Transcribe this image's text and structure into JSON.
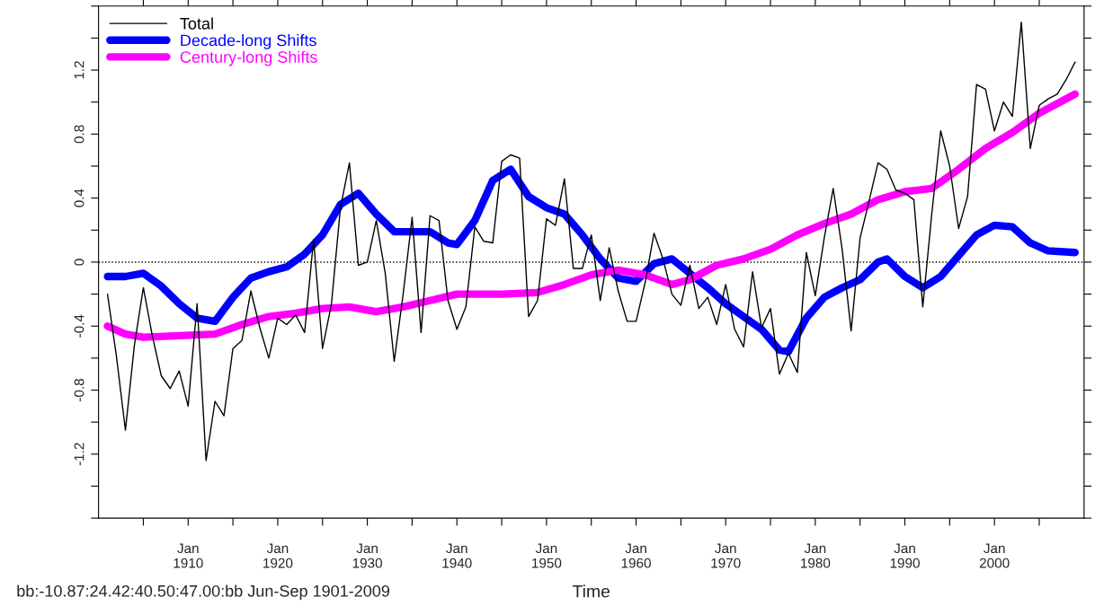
{
  "chart_data": {
    "type": "line",
    "xlabel": "Time",
    "annotations": [
      "bb:-10.87:24.42:40.50:47.00:bb Jun-Sep 1901-2009"
    ],
    "xlim": [
      "1900-01",
      "2010-01"
    ],
    "xticks": [
      {
        "value": "1905-01",
        "label": null
      },
      {
        "value": "1910-01",
        "label": "Jan\n1910"
      },
      {
        "value": "1915-01",
        "label": null
      },
      {
        "value": "1920-01",
        "label": "Jan\n1920"
      },
      {
        "value": "1925-01",
        "label": null
      },
      {
        "value": "1930-01",
        "label": "Jan\n1930"
      },
      {
        "value": "1935-01",
        "label": null
      },
      {
        "value": "1940-01",
        "label": "Jan\n1940"
      },
      {
        "value": "1945-01",
        "label": null
      },
      {
        "value": "1950-01",
        "label": "Jan\n1950"
      },
      {
        "value": "1955-01",
        "label": null
      },
      {
        "value": "1960-01",
        "label": "Jan\n1960"
      },
      {
        "value": "1965-01",
        "label": null
      },
      {
        "value": "1970-01",
        "label": "Jan\n1970"
      },
      {
        "value": "1975-01",
        "label": null
      },
      {
        "value": "1980-01",
        "label": "Jan\n1980"
      },
      {
        "value": "1985-01",
        "label": null
      },
      {
        "value": "1990-01",
        "label": "Jan\n1990"
      },
      {
        "value": "1995-01",
        "label": null
      },
      {
        "value": "2000-01",
        "label": "Jan\n2000"
      },
      {
        "value": "2005-01",
        "label": null
      }
    ],
    "ylim": [
      -1.6,
      1.6
    ],
    "yticks": [
      {
        "value": -1.6,
        "label": null
      },
      {
        "value": -1.4,
        "label": null
      },
      {
        "value": -1.2,
        "label": "-1.2"
      },
      {
        "value": -1.0,
        "label": null
      },
      {
        "value": -0.8,
        "label": "-0.8"
      },
      {
        "value": -0.6,
        "label": null
      },
      {
        "value": -0.4,
        "label": "-0.4"
      },
      {
        "value": -0.2,
        "label": null
      },
      0,
      {
        "value": 0.2,
        "label": null
      },
      0.4,
      {
        "value": 0.6,
        "label": null
      },
      0.8,
      {
        "value": 1.0,
        "label": null
      },
      1.2,
      {
        "value": 1.4,
        "label": null
      },
      {
        "value": 1.6,
        "label": null
      }
    ],
    "grid": false,
    "legend": "top left",
    "line_style": "solid",
    "marker": "none",
    "ref_lines": [
      {
        "axis": "y",
        "value": 0,
        "color": "#000000",
        "line_style": "dotted"
      }
    ],
    "series": [
      {
        "name": "Total",
        "color": "#000000",
        "x": [
          "1901",
          "1902",
          "1903",
          "1904",
          "1905",
          "1906",
          "1907",
          "1908",
          "1909",
          "1910",
          "1911",
          "1912",
          "1913",
          "1914",
          "1915",
          "1916",
          "1917",
          "1918",
          "1919",
          "1920",
          "1921",
          "1922",
          "1923",
          "1924",
          "1925",
          "1926",
          "1927",
          "1928",
          "1929",
          "1930",
          "1931",
          "1932",
          "1933",
          "1934",
          "1935",
          "1936",
          "1937",
          "1938",
          "1939",
          "1940",
          "1941",
          "1942",
          "1943",
          "1944",
          "1945",
          "1946",
          "1947",
          "1948",
          "1949",
          "1950",
          "1951",
          "1952",
          "1953",
          "1954",
          "1955",
          "1956",
          "1957",
          "1958",
          "1959",
          "1960",
          "1961",
          "1962",
          "1963",
          "1964",
          "1965",
          "1966",
          "1967",
          "1968",
          "1969",
          "1970",
          "1971",
          "1972",
          "1973",
          "1974",
          "1975",
          "1976",
          "1977",
          "1978",
          "1979",
          "1980",
          "1981",
          "1982",
          "1983",
          "1984",
          "1985",
          "1986",
          "1987",
          "1988",
          "1989",
          "1990",
          "1991",
          "1992",
          "1993",
          "1994",
          "1995",
          "1996",
          "1997",
          "1998",
          "1999",
          "2000",
          "2001",
          "2002",
          "2003",
          "2004",
          "2005",
          "2006",
          "2007",
          "2008",
          "2009"
        ],
        "values": [
          -0.2,
          -0.59,
          -1.05,
          -0.52,
          -0.16,
          -0.46,
          -0.71,
          -0.79,
          -0.68,
          -0.9,
          -0.26,
          -1.24,
          -0.87,
          -0.96,
          -0.54,
          -0.49,
          -0.18,
          -0.41,
          -0.6,
          -0.35,
          -0.39,
          -0.33,
          -0.44,
          0.14,
          -0.54,
          -0.26,
          0.34,
          0.62,
          -0.02,
          0.0,
          0.26,
          -0.07,
          -0.62,
          -0.2,
          0.28,
          -0.44,
          0.29,
          0.26,
          -0.24,
          -0.42,
          -0.28,
          0.22,
          0.13,
          0.12,
          0.63,
          0.67,
          0.65,
          -0.34,
          -0.24,
          0.27,
          0.23,
          0.52,
          -0.04,
          -0.04,
          0.17,
          -0.24,
          0.09,
          -0.18,
          -0.37,
          -0.37,
          -0.13,
          0.18,
          0.02,
          -0.2,
          -0.27,
          -0.02,
          -0.29,
          -0.22,
          -0.39,
          -0.14,
          -0.42,
          -0.53,
          -0.06,
          -0.41,
          -0.29,
          -0.7,
          -0.57,
          -0.69,
          0.06,
          -0.21,
          0.15,
          0.46,
          0.08,
          -0.43,
          0.15,
          0.38,
          0.62,
          0.58,
          0.45,
          0.43,
          0.39,
          -0.28,
          0.3,
          0.82,
          0.6,
          0.21,
          0.41,
          1.11,
          1.08,
          0.82,
          1.0,
          0.91,
          1.5,
          0.71,
          0.98,
          1.02,
          1.05,
          1.14,
          1.25
        ]
      },
      {
        "name": "Decade-long Shifts",
        "color": "#0000ff",
        "x": [
          "1901",
          "1903",
          "1905",
          "1907",
          "1909",
          "1911",
          "1913",
          "1915",
          "1917",
          "1919",
          "1921",
          "1923",
          "1925",
          "1927",
          "1929",
          "1931",
          "1933",
          "1935",
          "1937",
          "1939",
          "1940",
          "1942",
          "1944",
          "1946",
          "1948",
          "1950",
          "1952",
          "1954",
          "1956",
          "1958",
          "1960",
          "1962",
          "1964",
          "1966",
          "1968",
          "1970",
          "1972",
          "1974",
          "1976",
          "1977",
          "1979",
          "1981",
          "1983",
          "1985",
          "1987",
          "1988",
          "1990",
          "1992",
          "1994",
          "1996",
          "1998",
          "2000",
          "2002",
          "2004",
          "2006",
          "2009"
        ],
        "values": [
          -0.09,
          -0.09,
          -0.07,
          -0.15,
          -0.26,
          -0.35,
          -0.37,
          -0.22,
          -0.1,
          -0.06,
          -0.03,
          0.05,
          0.17,
          0.36,
          0.43,
          0.3,
          0.19,
          0.19,
          0.19,
          0.12,
          0.11,
          0.26,
          0.51,
          0.58,
          0.41,
          0.34,
          0.3,
          0.17,
          0.02,
          -0.1,
          -0.12,
          -0.01,
          0.02,
          -0.07,
          -0.16,
          -0.26,
          -0.34,
          -0.42,
          -0.55,
          -0.56,
          -0.35,
          -0.22,
          -0.16,
          -0.11,
          0.0,
          0.02,
          -0.09,
          -0.16,
          -0.09,
          0.04,
          0.17,
          0.23,
          0.22,
          0.12,
          0.07,
          0.06
        ]
      },
      {
        "name": "Century-long Shifts",
        "color": "#ff00ff",
        "x": [
          "1901",
          "1903",
          "1905",
          "1909",
          "1913",
          "1916",
          "1919",
          "1922",
          "1925",
          "1928",
          "1931",
          "1934",
          "1937",
          "1940",
          "1945",
          "1949",
          "1952",
          "1955",
          "1958",
          "1961",
          "1964",
          "1966",
          "1969",
          "1972",
          "1975",
          "1978",
          "1981",
          "1984",
          "1987",
          "1990",
          "1993",
          "1996",
          "1999",
          "2002",
          "2005",
          "2009"
        ],
        "values": [
          -0.4,
          -0.45,
          -0.47,
          -0.46,
          -0.45,
          -0.39,
          -0.34,
          -0.32,
          -0.29,
          -0.28,
          -0.31,
          -0.28,
          -0.24,
          -0.2,
          -0.2,
          -0.19,
          -0.14,
          -0.08,
          -0.05,
          -0.08,
          -0.14,
          -0.11,
          -0.02,
          0.02,
          0.08,
          0.17,
          0.24,
          0.3,
          0.39,
          0.44,
          0.46,
          0.58,
          0.71,
          0.81,
          0.93,
          1.05
        ]
      }
    ]
  }
}
